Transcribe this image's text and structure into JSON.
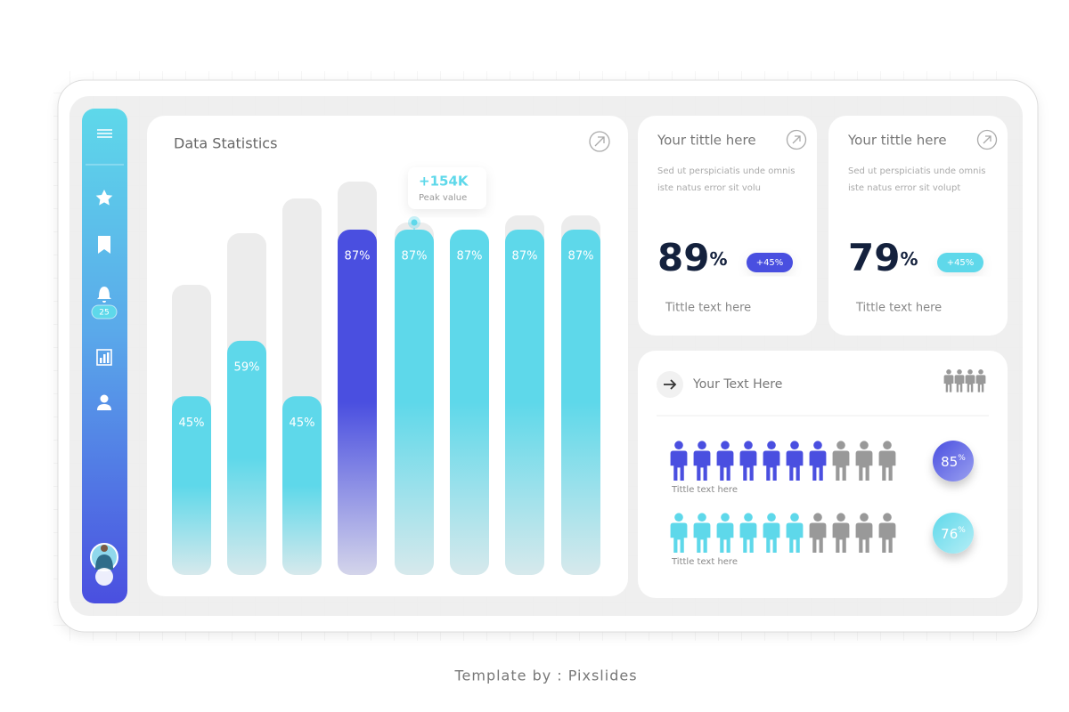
{
  "sidebar": {
    "badge": "25"
  },
  "chart_data": {
    "type": "bar",
    "title": "Data Statistics",
    "categories": [
      null,
      null,
      null,
      null,
      null,
      null,
      null,
      null
    ],
    "values": [
      45,
      59,
      45,
      87,
      87,
      87,
      87,
      87
    ],
    "value_labels": [
      "45%",
      "59%",
      "45%",
      "87%",
      "87%",
      "87%",
      "87%",
      "87%"
    ],
    "colors": [
      "#5ed8ea",
      "#5ed8ea",
      "#5ed8ea",
      "#4a4fe0",
      "#5ed8ea",
      "#5ed8ea",
      "#5ed8ea",
      "#5ed8ea"
    ],
    "ylim": [
      0,
      100
    ],
    "annotation": {
      "value": "+154K",
      "label": "Peak value"
    }
  },
  "cards": [
    {
      "title": "Your tittle here",
      "text": [
        "Sed ut perspiciatis unde omnis",
        "iste natus error sit volu"
      ],
      "value": "89",
      "unit": "%",
      "badge": "+45%",
      "caption": "Tittle text here"
    },
    {
      "title": "Your tittle here",
      "text": [
        "Sed ut perspiciatis unde omnis",
        "iste natus error sit volupt"
      ],
      "value": "79",
      "unit": "%",
      "badge": "+45%",
      "caption": "Tittle text here"
    }
  ],
  "people": {
    "heading": "Your Text Here",
    "rows": [
      {
        "value": "85",
        "unit": "%",
        "caption": "Tittle text here"
      },
      {
        "value": "76",
        "unit": "%",
        "caption": "Tittle text here"
      }
    ]
  },
  "footer": "Template by : Pixslides"
}
